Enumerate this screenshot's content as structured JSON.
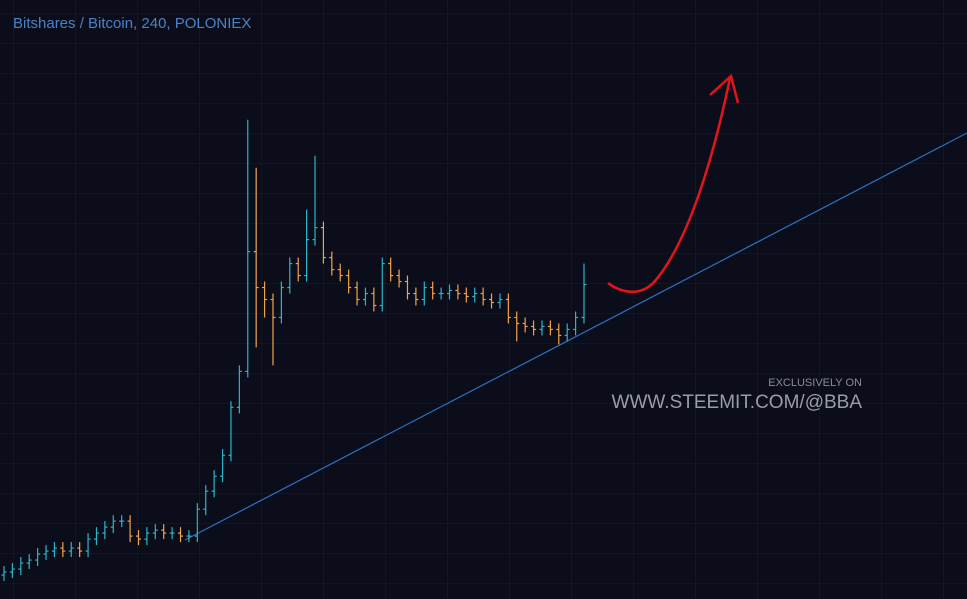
{
  "chart_data": {
    "type": "ohlc",
    "title": "Bitshares / Bitcoin, 240, POLONIEX",
    "annotations": [
      "EXCLUSIVELY ON",
      "WWW.STEEMIT.COM/@BBA"
    ],
    "up_color": "#2bb5c8",
    "down_color": "#f2a24a",
    "ylim": [
      0,
      100
    ],
    "open": [
      4,
      4.5,
      5,
      6,
      6.5,
      7.5,
      8,
      8.5,
      8,
      8.5,
      8,
      10,
      11,
      12,
      13,
      13,
      10.5,
      10,
      11,
      11.5,
      11,
      11,
      10.5,
      10.5,
      15,
      18,
      20.5,
      24,
      32,
      38,
      58,
      52,
      50,
      47,
      52,
      56,
      54,
      60,
      62,
      57,
      55,
      54,
      52,
      50,
      51,
      49,
      56,
      54,
      53,
      51,
      50,
      52,
      51,
      51,
      51.5,
      51,
      50.5,
      51,
      50,
      49.5,
      50,
      47,
      46,
      45.5,
      45,
      45.5,
      45,
      44,
      45,
      47
    ],
    "high": [
      5.5,
      6,
      7,
      7.5,
      8.5,
      9,
      9.5,
      9.5,
      9.5,
      9.5,
      11,
      12,
      13,
      14,
      14,
      14,
      11.5,
      12,
      12.5,
      12.5,
      12,
      12,
      11.5,
      16,
      19,
      21.5,
      25,
      33,
      39,
      80,
      72,
      53,
      51,
      53,
      57,
      57,
      65,
      74,
      63,
      58,
      56,
      55,
      53,
      52,
      52,
      57,
      57,
      55,
      54,
      52,
      53,
      53,
      52,
      52.5,
      52.5,
      52,
      52,
      52,
      51,
      51,
      51,
      48,
      47,
      46.5,
      46.5,
      46.5,
      46,
      46,
      48,
      56
    ],
    "low": [
      3,
      3.5,
      4,
      5,
      5.5,
      6.5,
      7,
      7,
      7,
      7,
      7,
      9,
      10,
      11,
      12,
      9.5,
      9,
      9,
      10,
      10,
      10,
      9.5,
      9.5,
      9.5,
      14,
      17,
      19.5,
      23,
      31,
      37,
      42,
      47,
      39,
      46,
      51,
      53,
      53,
      59,
      56,
      54,
      53,
      51,
      49,
      49,
      48,
      48,
      53,
      52,
      50,
      49,
      49,
      50,
      50,
      50,
      50,
      49.5,
      49.5,
      49,
      48.5,
      48.5,
      46,
      43,
      44.5,
      44,
      44,
      44,
      42.5,
      43,
      44,
      46
    ],
    "close": [
      4.5,
      5,
      6,
      6.5,
      7.5,
      8,
      8.5,
      8,
      8.5,
      8,
      10,
      11,
      12,
      13,
      13,
      10.5,
      10,
      11,
      11.5,
      11,
      11,
      10.5,
      10.5,
      15,
      18,
      20.5,
      24,
      32,
      38,
      58,
      52,
      50,
      47,
      52,
      56,
      54,
      60,
      62,
      57,
      55,
      54,
      52,
      50,
      51,
      49,
      56,
      54,
      53,
      51,
      50,
      52,
      51,
      51,
      51.5,
      51,
      50.5,
      51,
      50,
      49.5,
      50,
      47,
      46,
      45.5,
      45,
      45.5,
      45,
      44,
      45,
      47,
      52.5
    ]
  }
}
